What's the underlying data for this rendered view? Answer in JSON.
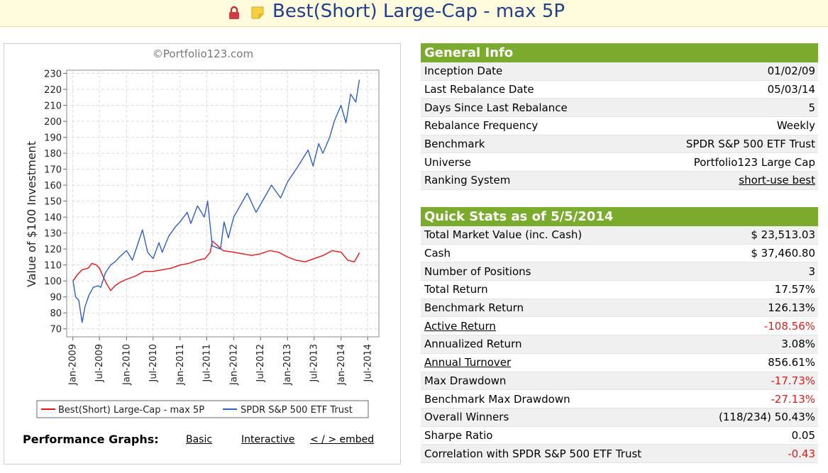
{
  "title": "Best(Short) Large-Cap - max 5P",
  "icons": {
    "lock": "lock-icon",
    "note": "sticky-note-icon"
  },
  "colors": {
    "header_green": "#7aab2d",
    "title_blue": "#1f3f8f",
    "negative_red": "#e01b1b",
    "portfolio_line": "#e81414",
    "benchmark_line": "#2f5fc8"
  },
  "chart": {
    "watermark": "©Portfolio123.com",
    "performance_label": "Performance Graphs:",
    "links": {
      "basic": "Basic",
      "interactive": "Interactive",
      "embed": "< / > embed"
    }
  },
  "chart_data": {
    "type": "line",
    "ylabel": "Value of $100 Investment",
    "xlabel": "",
    "ylim": [
      65,
      232
    ],
    "yticks": [
      70,
      80,
      90,
      100,
      110,
      120,
      130,
      140,
      150,
      160,
      170,
      180,
      190,
      200,
      210,
      220,
      230
    ],
    "xticks": [
      "Jan-2009",
      "Jul-2009",
      "Jan-2010",
      "Jul-2010",
      "Jan-2011",
      "Jul-2011",
      "Jan-2012",
      "Jul-2012",
      "Jan-2013",
      "Jul-2013",
      "Jan-2014",
      "Jul-2014"
    ],
    "grid": true,
    "legend": "bottom",
    "series": [
      {
        "name": "Best(Short) Large-Cap - max 5P",
        "color": "#e81414",
        "points": [
          [
            "2009-01-02",
            100
          ],
          [
            "2009-02-01",
            104
          ],
          [
            "2009-03-05",
            107
          ],
          [
            "2009-04-15",
            108
          ],
          [
            "2009-05-10",
            111
          ],
          [
            "2009-06-10",
            110
          ],
          [
            "2009-07-01",
            108
          ],
          [
            "2009-07-25",
            103
          ],
          [
            "2009-08-20",
            98
          ],
          [
            "2009-09-15",
            94
          ],
          [
            "2009-10-15",
            97
          ],
          [
            "2009-11-15",
            99
          ],
          [
            "2010-01-01",
            101
          ],
          [
            "2010-03-01",
            103
          ],
          [
            "2010-05-01",
            106
          ],
          [
            "2010-07-01",
            106
          ],
          [
            "2010-09-01",
            107
          ],
          [
            "2010-11-01",
            108
          ],
          [
            "2011-01-01",
            110
          ],
          [
            "2011-03-01",
            111
          ],
          [
            "2011-05-01",
            113
          ],
          [
            "2011-06-20",
            114
          ],
          [
            "2011-07-25",
            118
          ],
          [
            "2011-08-08",
            125
          ],
          [
            "2011-09-15",
            122
          ],
          [
            "2011-10-20",
            119
          ],
          [
            "2012-01-01",
            118
          ],
          [
            "2012-03-01",
            117
          ],
          [
            "2012-05-01",
            116
          ],
          [
            "2012-07-01",
            117
          ],
          [
            "2012-09-01",
            119
          ],
          [
            "2012-11-01",
            118
          ],
          [
            "2013-01-01",
            115
          ],
          [
            "2013-03-01",
            113
          ],
          [
            "2013-05-01",
            112
          ],
          [
            "2013-07-01",
            114
          ],
          [
            "2013-09-01",
            116
          ],
          [
            "2013-11-01",
            119
          ],
          [
            "2014-01-01",
            118
          ],
          [
            "2014-02-15",
            113
          ],
          [
            "2014-04-01",
            112
          ],
          [
            "2014-05-05",
            117.6
          ]
        ]
      },
      {
        "name": "SPDR S&P 500 ETF Trust",
        "color": "#2f5fc8",
        "points": [
          [
            "2009-01-02",
            100
          ],
          [
            "2009-01-20",
            90
          ],
          [
            "2009-02-10",
            88
          ],
          [
            "2009-03-05",
            74
          ],
          [
            "2009-03-25",
            84
          ],
          [
            "2009-04-20",
            91
          ],
          [
            "2009-05-20",
            96
          ],
          [
            "2009-06-20",
            97
          ],
          [
            "2009-07-10",
            96
          ],
          [
            "2009-08-10",
            105
          ],
          [
            "2009-09-15",
            110
          ],
          [
            "2009-10-15",
            112
          ],
          [
            "2009-11-15",
            115
          ],
          [
            "2010-01-01",
            119
          ],
          [
            "2010-02-10",
            113
          ],
          [
            "2010-04-20",
            132
          ],
          [
            "2010-05-25",
            118
          ],
          [
            "2010-07-01",
            114
          ],
          [
            "2010-08-10",
            124
          ],
          [
            "2010-09-01",
            118
          ],
          [
            "2010-10-15",
            128
          ],
          [
            "2010-12-01",
            134
          ],
          [
            "2011-01-01",
            137
          ],
          [
            "2011-02-18",
            143
          ],
          [
            "2011-03-15",
            136
          ],
          [
            "2011-04-29",
            147
          ],
          [
            "2011-06-15",
            140
          ],
          [
            "2011-07-07",
            150
          ],
          [
            "2011-08-08",
            122
          ],
          [
            "2011-10-03",
            120
          ],
          [
            "2011-10-27",
            137
          ],
          [
            "2011-11-25",
            127
          ],
          [
            "2012-01-01",
            140
          ],
          [
            "2012-04-02",
            155
          ],
          [
            "2012-06-01",
            143
          ],
          [
            "2012-09-14",
            160
          ],
          [
            "2012-11-15",
            152
          ],
          [
            "2013-01-01",
            162
          ],
          [
            "2013-03-15",
            172
          ],
          [
            "2013-05-21",
            182
          ],
          [
            "2013-06-24",
            172
          ],
          [
            "2013-08-01",
            186
          ],
          [
            "2013-08-30",
            180
          ],
          [
            "2013-10-15",
            190
          ],
          [
            "2013-11-15",
            200
          ],
          [
            "2013-12-31",
            210
          ],
          [
            "2014-02-03",
            199
          ],
          [
            "2014-03-07",
            217
          ],
          [
            "2014-04-11",
            212
          ],
          [
            "2014-05-05",
            226
          ]
        ]
      }
    ]
  },
  "general_info": {
    "header": "General Info",
    "rows": [
      {
        "label": "Inception Date",
        "value": "01/02/09"
      },
      {
        "label": "Last Rebalance Date",
        "value": "05/03/14"
      },
      {
        "label": "Days Since Last Rebalance",
        "value": "5"
      },
      {
        "label": "Rebalance Frequency",
        "value": "Weekly"
      },
      {
        "label": "Benchmark",
        "value": "SPDR S&P 500 ETF Trust"
      },
      {
        "label": "Universe",
        "value": "Portfolio123 Large Cap"
      },
      {
        "label": "Ranking System",
        "value": "short-use best"
      }
    ]
  },
  "quick_stats": {
    "header": "Quick Stats as of 5/5/2014",
    "rows": [
      {
        "label": "Total Market Value (inc. Cash)",
        "value": "$ 23,513.03"
      },
      {
        "label": "Cash",
        "value": "$ 37,460.80"
      },
      {
        "label": "Number of Positions",
        "value": "3"
      },
      {
        "label": "Total Return",
        "value": "17.57%"
      },
      {
        "label": "Benchmark Return",
        "value": "126.13%"
      },
      {
        "label": "Active Return",
        "value": "-108.56%"
      },
      {
        "label": "Annualized Return",
        "value": "3.08%"
      },
      {
        "label": "Annual Turnover",
        "value": "856.61%"
      },
      {
        "label": "Max Drawdown",
        "value": "-17.73%"
      },
      {
        "label": "Benchmark Max Drawdown",
        "value": "-27.13%"
      },
      {
        "label": "Overall Winners",
        "value": "(118/234) 50.43%"
      },
      {
        "label": "Sharpe Ratio",
        "value": "0.05"
      },
      {
        "label": "Correlation with SPDR S&P 500 ETF Trust",
        "value": "-0.43"
      }
    ]
  }
}
